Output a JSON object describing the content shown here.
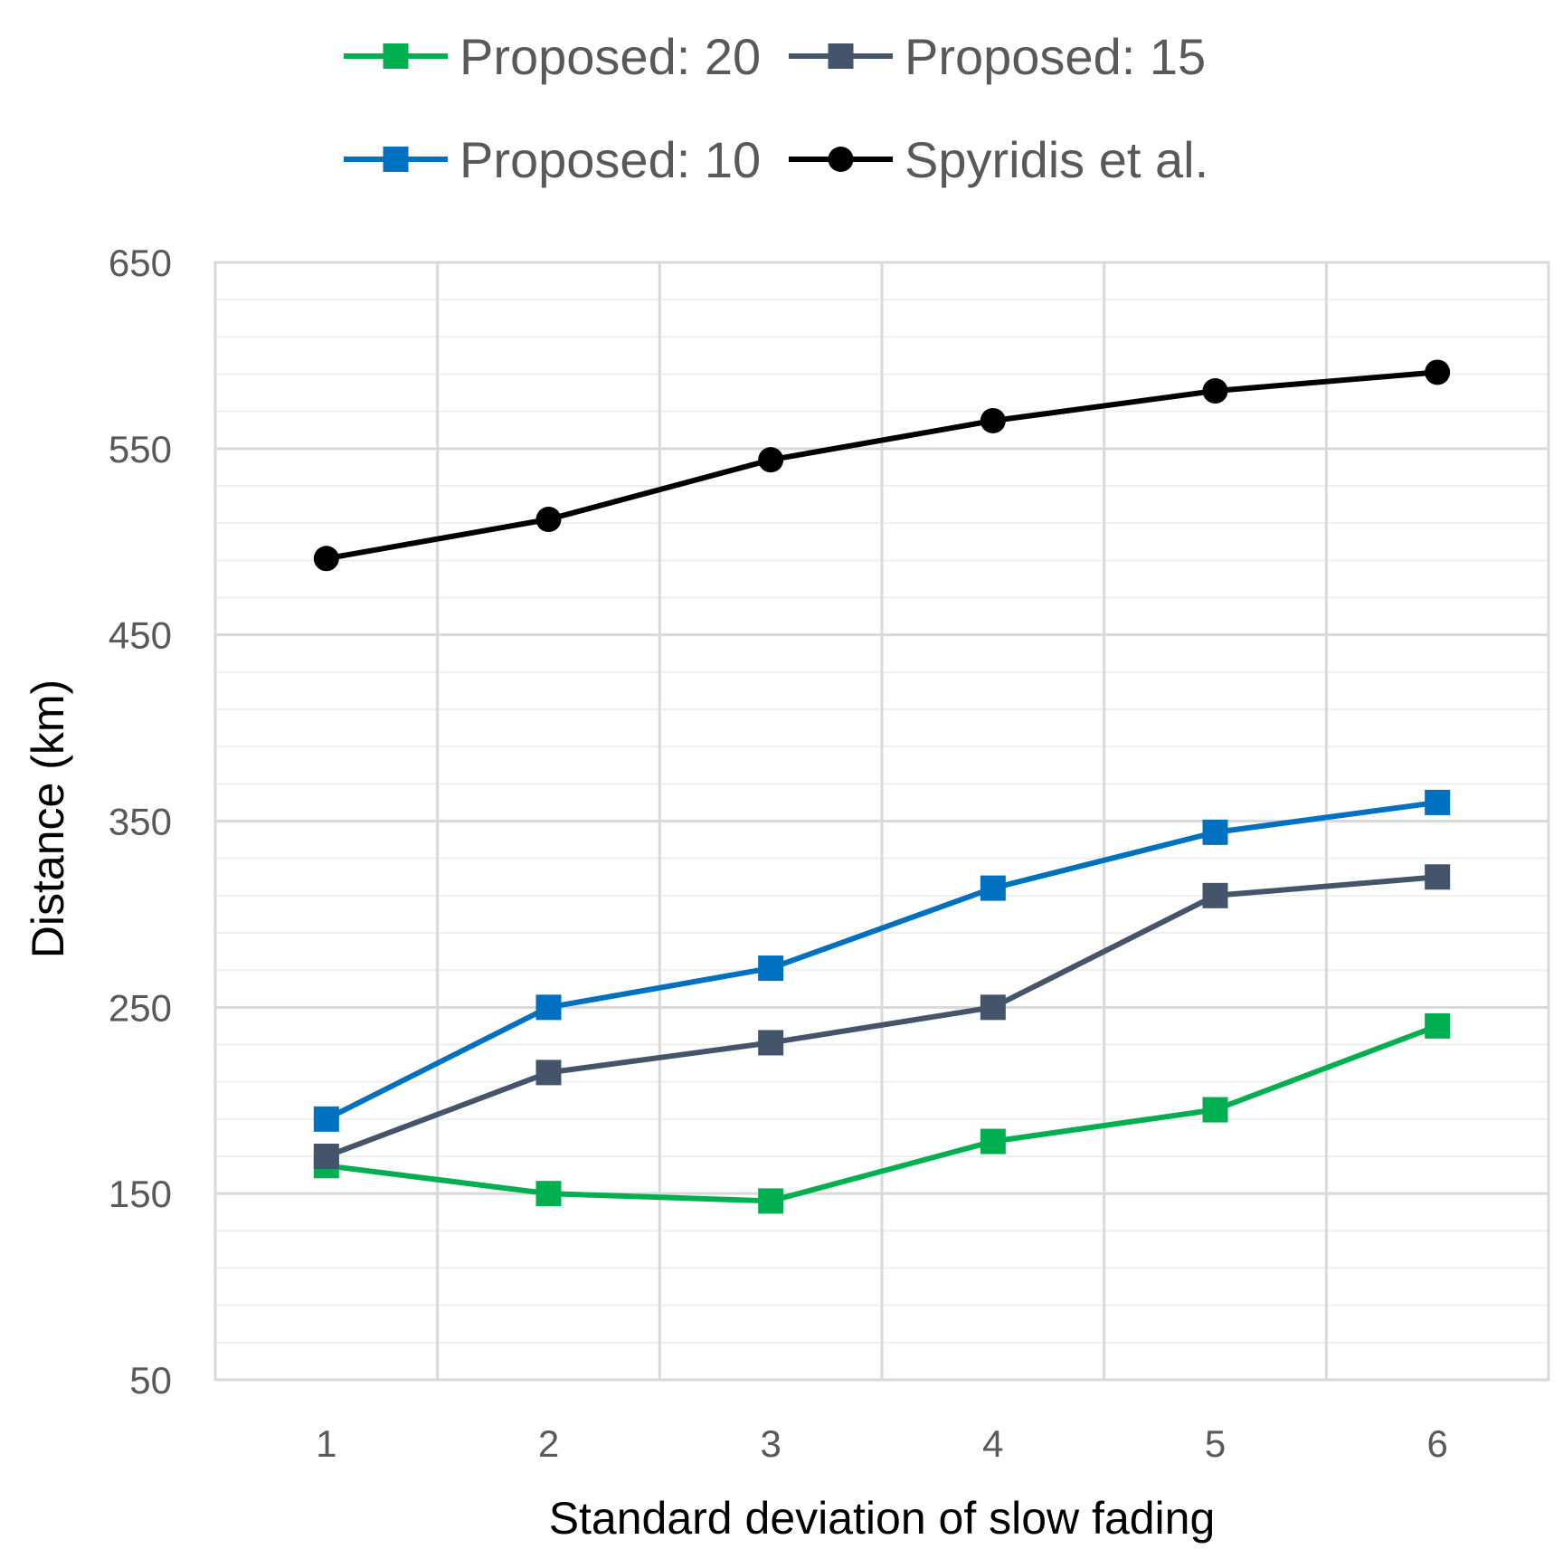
{
  "chart_data": {
    "type": "line",
    "title": "",
    "xlabel": "Standard deviation of slow fading",
    "ylabel": "Distance (km)",
    "x": [
      1,
      2,
      3,
      4,
      5,
      6
    ],
    "xlim": [
      0.5,
      6.5
    ],
    "ylim": [
      50,
      650
    ],
    "y_major_ticks": [
      50,
      150,
      250,
      350,
      450,
      550,
      650
    ],
    "y_minor_step": 20,
    "grid": true,
    "legend_position": "top",
    "series": [
      {
        "name": "Proposed: 20",
        "color": "#00b050",
        "marker": "square",
        "values": [
          165,
          150,
          146,
          178,
          195,
          240
        ]
      },
      {
        "name": "Proposed: 15",
        "color": "#44546a",
        "marker": "square",
        "values": [
          170,
          215,
          231,
          250,
          310,
          320
        ]
      },
      {
        "name": "Proposed: 10",
        "color": "#0070c0",
        "marker": "square",
        "values": [
          190,
          250,
          271,
          314,
          344,
          360
        ]
      },
      {
        "name": "Spyridis et al.",
        "color": "#000000",
        "marker": "circle",
        "values": [
          491,
          512,
          544,
          565,
          581,
          591
        ]
      }
    ]
  }
}
